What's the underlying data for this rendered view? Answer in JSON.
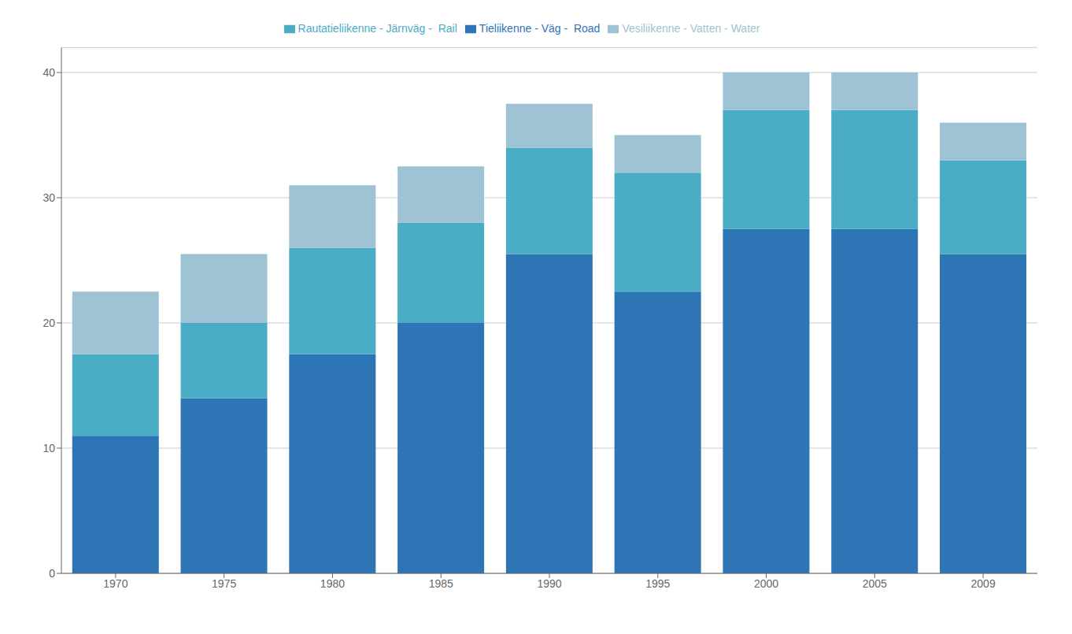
{
  "chart_data": {
    "type": "bar",
    "stacked": true,
    "categories": [
      "1970",
      "1975",
      "1980",
      "1985",
      "1990",
      "1995",
      "2000",
      "2005",
      "2009"
    ],
    "series": [
      {
        "name": "Tieliikenne - Väg -  Road",
        "color": "#2e75b6",
        "values": [
          11,
          14,
          17.5,
          20,
          25.5,
          22.5,
          27.5,
          27.5,
          25.5
        ]
      },
      {
        "name": "Rautatieliikenne - Järnväg -  Rail",
        "color": "#4bacc6",
        "values": [
          6.5,
          6,
          8.5,
          8,
          8.5,
          9.5,
          9.5,
          9.5,
          7.5
        ]
      },
      {
        "name": "Vesiliikenne - Vatten - Water",
        "color": "#9dc3d4",
        "values": [
          5,
          5.5,
          5,
          4.5,
          3.5,
          3,
          3,
          3,
          3
        ]
      }
    ],
    "ylim": [
      0,
      42
    ],
    "yticks": [
      0,
      10,
      20,
      30,
      40
    ],
    "grid": true,
    "legend": "top"
  }
}
